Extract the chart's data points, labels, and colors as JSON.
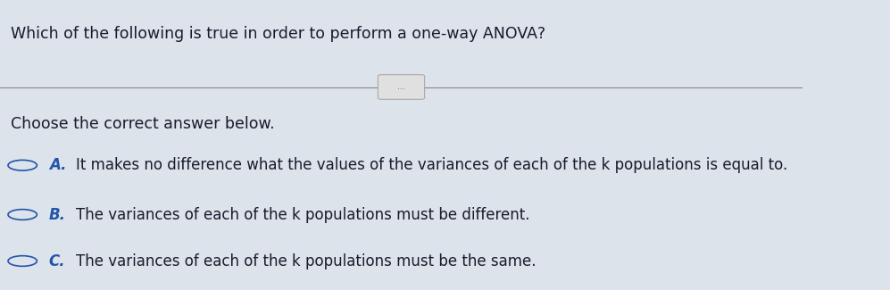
{
  "background_color": "#dce3ea",
  "title": "Which of the following is true in order to perform a one-way ANOVA?",
  "title_color": "#1a1a2e",
  "subtitle": "Choose the correct answer below.",
  "subtitle_color": "#1a1a2e",
  "options": [
    {
      "label": "A.",
      "text": "It makes no difference what the values of the variances of each of the k populations is equal to."
    },
    {
      "label": "B.",
      "text": "The variances of each of the k populations must be different."
    },
    {
      "label": "C.",
      "text": "The variances of each of the k populations must be the same."
    }
  ],
  "option_label_color": "#2255aa",
  "option_text_color": "#1a1a2e",
  "circle_edge_color": "#2255aa",
  "line_color": "#888888",
  "divider_button_text": "...",
  "title_fontsize": 12.5,
  "subtitle_fontsize": 12.5,
  "option_fontsize": 12.0
}
